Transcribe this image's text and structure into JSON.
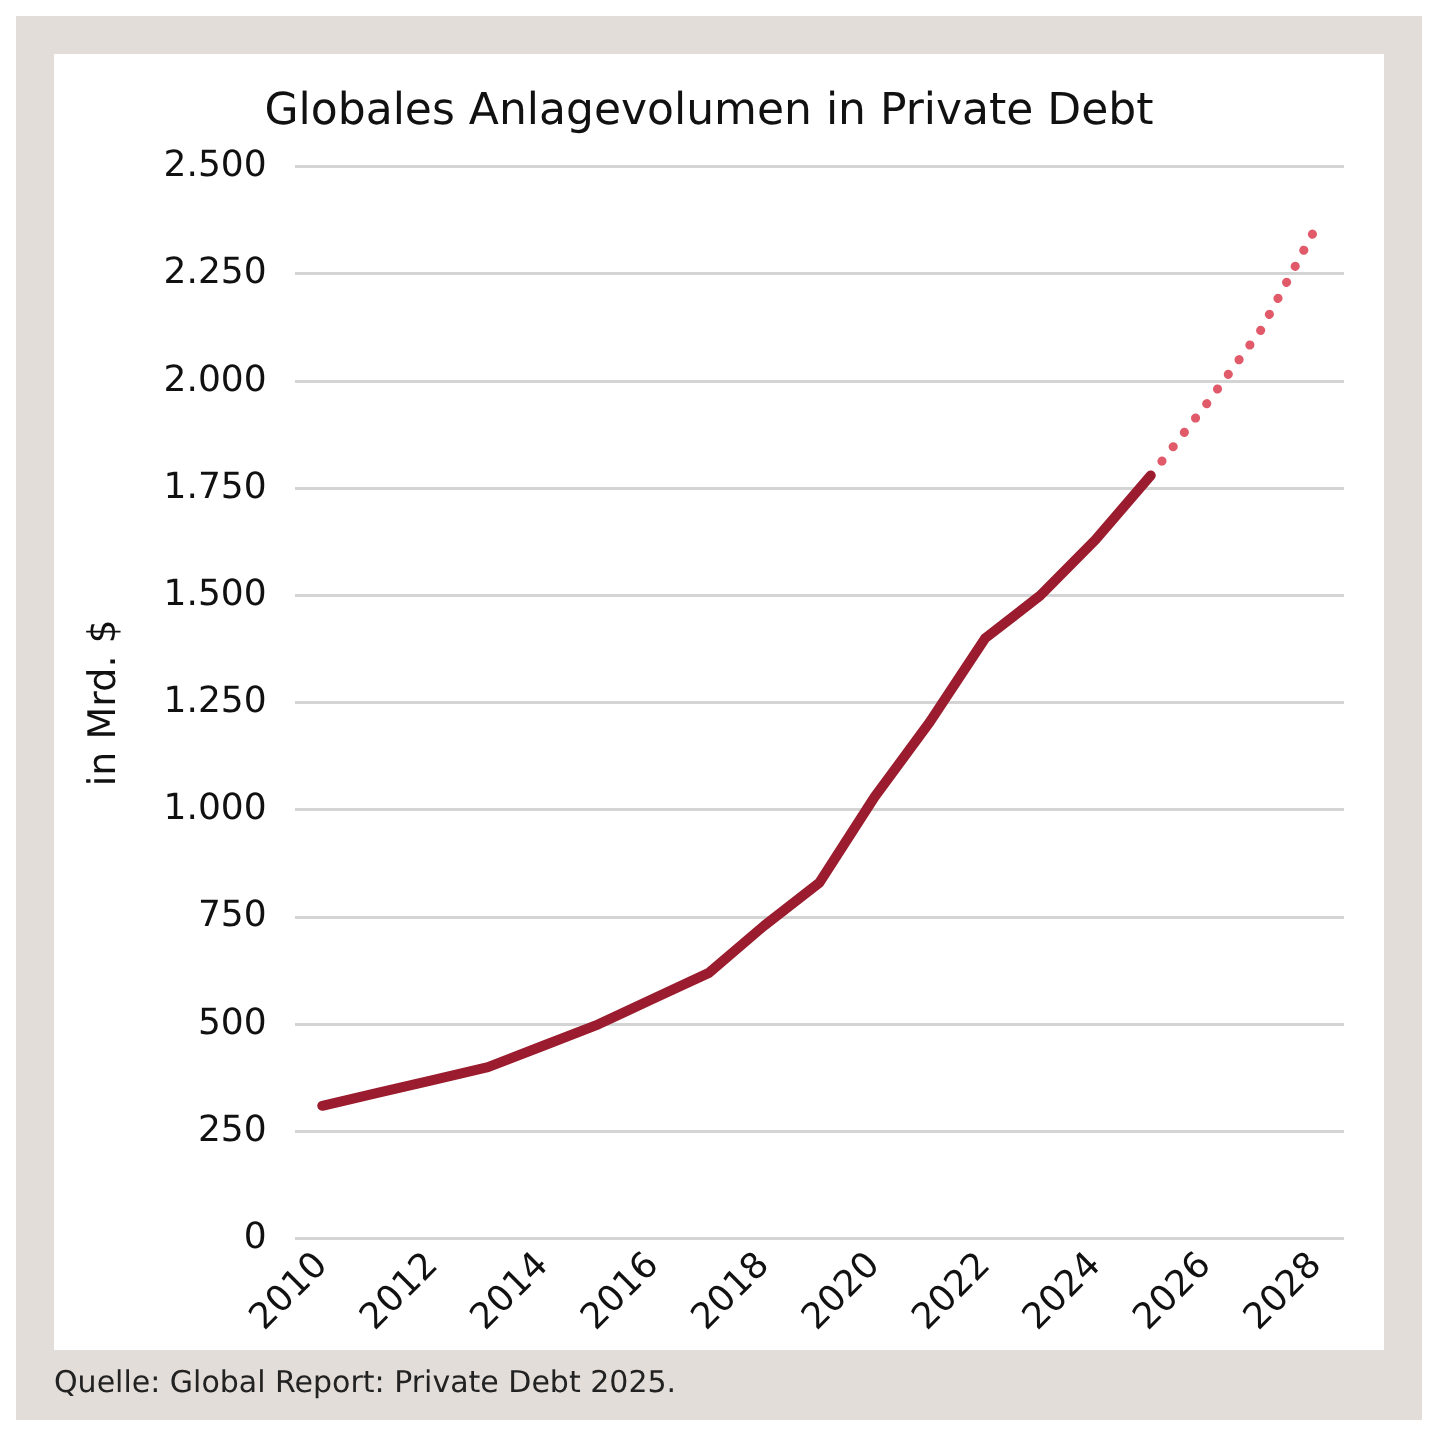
{
  "chart_data": {
    "type": "line",
    "title": "Globales Anlagevolumen in Private Debt",
    "ylabel": "in Mrd. $",
    "annotations": [
      "Quelle: Global Report: Private Debt 2025."
    ],
    "series": [
      {
        "color": "#9b1c2e",
        "line_style": "solid",
        "x": [
          2010,
          2011,
          2012,
          2013,
          2014,
          2015,
          2016,
          2017,
          2018,
          2019,
          2020,
          2021,
          2022,
          2023,
          2024,
          2025
        ],
        "values": [
          310,
          340,
          370,
          400,
          450,
          500,
          560,
          620,
          730,
          830,
          1030,
          1205,
          1400,
          1500,
          1630,
          1780
        ]
      },
      {
        "color": "#e05a6a",
        "line_style": "dotted",
        "x": [
          2025,
          2026,
          2027,
          2028
        ],
        "values": [
          1780,
          1945,
          2120,
          2360
        ]
      }
    ],
    "xlim": [
      2009.5,
      2028.5
    ],
    "xticks": [
      2010,
      2012,
      2014,
      2016,
      2018,
      2020,
      2022,
      2024,
      2026,
      2028
    ],
    "ylim": [
      0,
      2500
    ],
    "yticks": [
      0,
      {
        "value": 250,
        "label": "250"
      },
      {
        "value": 500,
        "label": "500"
      },
      {
        "value": 750,
        "label": "750"
      },
      {
        "value": 1000,
        "label": "1.000"
      },
      {
        "value": 1250,
        "label": "1.250"
      },
      {
        "value": 1500,
        "label": "1.500"
      },
      {
        "value": 1750,
        "label": "1.750"
      },
      {
        "value": 2000,
        "label": "2.000"
      },
      {
        "value": 2250,
        "label": "2.250"
      },
      {
        "value": 2500,
        "label": "2.500"
      }
    ],
    "grid": "y",
    "legend": false,
    "marker": "none"
  }
}
